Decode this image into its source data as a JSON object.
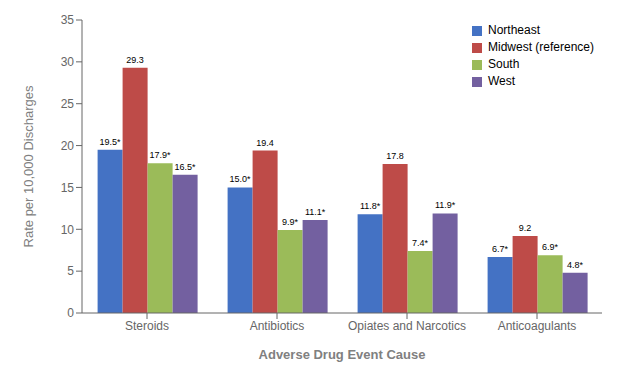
{
  "chart_data": {
    "type": "bar",
    "categories": [
      "Steroids",
      "Antibiotics",
      "Opiates and Narcotics",
      "Anticoagulants"
    ],
    "series": [
      {
        "name": "Northeast",
        "color": "#4472C4",
        "values": [
          19.5,
          15.0,
          11.8,
          6.7
        ],
        "value_labels": [
          "19.5*",
          "15.0*",
          "11.8*",
          "6.7*"
        ]
      },
      {
        "name": "Midwest (reference)",
        "color": "#BE4B48",
        "values": [
          29.3,
          19.4,
          17.8,
          9.2
        ],
        "value_labels": [
          "29.3",
          "19.4",
          "17.8",
          "9.2"
        ]
      },
      {
        "name": "South",
        "color": "#9BBB59",
        "values": [
          17.9,
          9.9,
          7.4,
          6.9
        ],
        "value_labels": [
          "17.9*",
          "9.9*",
          "7.4*",
          "6.9*"
        ]
      },
      {
        "name": "West",
        "color": "#7360A0",
        "values": [
          16.5,
          11.1,
          11.9,
          4.8
        ],
        "value_labels": [
          "16.5*",
          "11.1*",
          "11.9*",
          "4.8*"
        ]
      }
    ],
    "xlabel": "Adverse Drug Event Cause",
    "ylabel": "Rate per 10,000  Discharges",
    "ylim": [
      0,
      35
    ],
    "yticks": [
      0,
      5,
      10,
      15,
      20,
      25,
      30,
      35
    ],
    "grid": false,
    "legend": "upper right",
    "data_labels": true
  }
}
